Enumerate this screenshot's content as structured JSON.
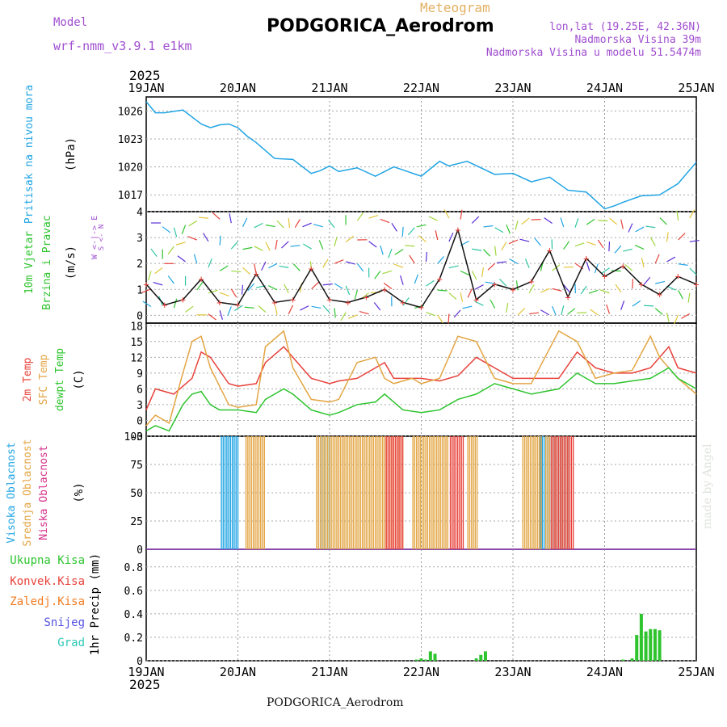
{
  "header": {
    "title": "PODGORICA_Aerodrom",
    "subtitle": "Meteogram",
    "model_label": "Model",
    "model_value": "wrf-nmm_v3.9.1  e1km",
    "coords": "lon,lat (19.25E, 42.36N)",
    "elevation": "Nadmorska Visina 39m",
    "model_elevation": "Nadmorska Visina u modelu 51.5474m",
    "year_top": "2025",
    "year_bottom": "2025",
    "footer": "PODGORICA_Aerodrom",
    "watermark": "made by Angel"
  },
  "chart_data": [
    {
      "type": "line",
      "ylabel": "Pritisak na nivou mora",
      "unit": "(hPa)",
      "x_labels": [
        "19JAN",
        "20JAN",
        "21JAN",
        "22JAN",
        "23JAN",
        "24JAN",
        "25JAN"
      ],
      "yticks": [
        1017,
        1020,
        1023,
        1026
      ],
      "ylim": [
        1015.2,
        1027.5
      ],
      "color": "#1fa4e4",
      "series": [
        {
          "x": [
            0,
            0.1,
            0.2,
            0.4,
            0.6,
            0.7,
            0.8,
            0.9,
            1.0,
            1.1,
            1.2,
            1.4,
            1.6,
            1.8,
            1.9,
            2.0,
            2.1,
            2.3,
            2.5,
            2.7,
            3.0,
            3.2,
            3.3,
            3.5,
            3.8,
            4.0,
            4.2,
            4.4,
            4.6,
            4.8,
            5.0,
            5.1,
            5.2,
            5.4,
            5.6,
            5.8,
            6.0
          ],
          "values": [
            1027.0,
            1025.8,
            1025.8,
            1026.1,
            1024.6,
            1024.2,
            1024.5,
            1024.6,
            1024.2,
            1023.3,
            1022.6,
            1020.9,
            1020.8,
            1019.3,
            1019.6,
            1020.1,
            1019.5,
            1019.9,
            1019.0,
            1020.0,
            1019.0,
            1020.6,
            1020.1,
            1020.6,
            1019.2,
            1019.3,
            1018.4,
            1018.9,
            1017.5,
            1017.3,
            1015.5,
            1015.8,
            1016.2,
            1016.9,
            1017.0,
            1018.2,
            1020.5
          ]
        }
      ]
    },
    {
      "type": "line",
      "ylabel": "10m Vjetar Brzina i Pravac",
      "unit": "(m/s)",
      "compass": "W <-|-> E",
      "compass_ns": "S <- N",
      "yticks": [
        0,
        1,
        2,
        3,
        4
      ],
      "ylim": [
        -0.3,
        4
      ],
      "series": [
        {
          "name": "speed",
          "x": [
            0,
            0.2,
            0.4,
            0.6,
            0.8,
            1.0,
            1.2,
            1.4,
            1.6,
            1.8,
            2.0,
            2.2,
            2.4,
            2.6,
            2.8,
            3.0,
            3.2,
            3.4,
            3.6,
            3.8,
            4.0,
            4.2,
            4.4,
            4.6,
            4.8,
            5.0,
            5.2,
            5.4,
            5.6,
            5.8,
            6.0
          ],
          "values": [
            1.2,
            0.4,
            0.6,
            1.4,
            0.5,
            0.4,
            1.6,
            0.5,
            0.6,
            1.8,
            0.6,
            0.5,
            0.7,
            1.0,
            0.5,
            0.3,
            1.4,
            3.3,
            0.6,
            1.2,
            1.0,
            1.3,
            2.5,
            0.7,
            2.2,
            1.5,
            1.9,
            1.2,
            0.8,
            1.5,
            1.2
          ]
        }
      ]
    },
    {
      "type": "line",
      "ylabel": "2m Temp",
      "unit": "(C)",
      "legend": [
        "2m Temp",
        "SFC Temp",
        "dewpt Temp"
      ],
      "yticks": [
        -3,
        0,
        3,
        6,
        9,
        12,
        15,
        18
      ],
      "ylim": [
        -3,
        18.5
      ],
      "series": [
        {
          "name": "2m Temp",
          "color": "#e8413a",
          "x": [
            0,
            0.1,
            0.3,
            0.5,
            0.6,
            0.7,
            0.9,
            1.0,
            1.2,
            1.3,
            1.5,
            1.6,
            1.8,
            2.0,
            2.1,
            2.3,
            2.5,
            2.6,
            2.7,
            2.9,
            3.0,
            3.2,
            3.4,
            3.6,
            3.8,
            4.0,
            4.2,
            4.5,
            4.7,
            4.9,
            5.1,
            5.3,
            5.5,
            5.7,
            5.8,
            6.0
          ],
          "values": [
            2,
            6,
            5,
            8,
            13,
            12,
            7,
            6.5,
            7,
            11,
            14,
            12,
            8,
            7,
            7.5,
            8,
            10,
            11,
            8,
            8,
            8,
            7.5,
            8.5,
            12,
            10,
            8,
            8,
            8,
            13,
            10,
            9,
            9,
            10,
            14,
            10,
            9
          ]
        },
        {
          "name": "SFC Temp",
          "color": "#e3a543",
          "x": [
            0,
            0.1,
            0.25,
            0.4,
            0.5,
            0.6,
            0.7,
            0.9,
            1.0,
            1.2,
            1.3,
            1.5,
            1.6,
            1.8,
            2.0,
            2.1,
            2.3,
            2.5,
            2.6,
            2.7,
            2.9,
            3.0,
            3.2,
            3.4,
            3.6,
            3.8,
            4.0,
            4.2,
            4.5,
            4.7,
            4.9,
            5.1,
            5.3,
            5.5,
            5.6,
            5.8,
            6.0
          ],
          "values": [
            -1,
            1,
            -0.5,
            9,
            15,
            16,
            10,
            3,
            2.5,
            3,
            14,
            17,
            10,
            4,
            3.5,
            4,
            11,
            12,
            8,
            7,
            8,
            7,
            8,
            16,
            15,
            8,
            7,
            7,
            17,
            15,
            8,
            9,
            9.5,
            16,
            12,
            8,
            5
          ]
        },
        {
          "name": "dewpt Temp",
          "color": "#2ec42e",
          "x": [
            0,
            0.1,
            0.25,
            0.4,
            0.5,
            0.6,
            0.7,
            0.8,
            1.0,
            1.2,
            1.3,
            1.5,
            1.6,
            1.8,
            2.0,
            2.1,
            2.3,
            2.5,
            2.6,
            2.8,
            3.0,
            3.2,
            3.4,
            3.6,
            3.8,
            4.0,
            4.2,
            4.5,
            4.7,
            4.9,
            5.1,
            5.3,
            5.5,
            5.7,
            5.8,
            6.0
          ],
          "values": [
            -2,
            -1,
            -2,
            3,
            5,
            5.5,
            3,
            2,
            2,
            1.5,
            4,
            6,
            5,
            2,
            1,
            1.5,
            3,
            3.5,
            5,
            2,
            1.5,
            2,
            4,
            5,
            7,
            6,
            5,
            6,
            9,
            7,
            7,
            7.5,
            8,
            10,
            8,
            6
          ]
        }
      ]
    },
    {
      "type": "bar",
      "ylabel": "Oblacnost",
      "unit": "(%)",
      "legend": [
        "Visoka Oblacnost",
        "Srednja Oblacnost",
        "Niska Oblacnost"
      ],
      "yticks": [
        0,
        25,
        50,
        75,
        100
      ],
      "ylim": [
        0,
        100
      ],
      "series": [
        {
          "name": "Visoka Oblacnost",
          "color": "#1fa4e4",
          "ranges": [
            [
              0.82,
              1.0
            ],
            [
              1.9,
              2.0
            ],
            [
              4.3,
              4.6
            ]
          ]
        },
        {
          "name": "Srednja Oblacnost",
          "color": "#e3a543",
          "ranges": [
            [
              1.08,
              1.3
            ],
            [
              1.85,
              2.8
            ],
            [
              2.9,
              3.3
            ],
            [
              3.5,
              3.6
            ],
            [
              4.1,
              4.3
            ],
            [
              4.35,
              4.6
            ]
          ]
        },
        {
          "name": "Niska Oblacnost",
          "color": "#e8413a",
          "ranges": [
            [
              2.6,
              2.8
            ],
            [
              3.3,
              3.45
            ],
            [
              4.4,
              4.65
            ]
          ]
        }
      ]
    },
    {
      "type": "bar",
      "ylabel": "1hr Precip (mm)",
      "legend": [
        "Ukupna Kisa",
        "Konvek.Kisa",
        "Zaledj.Kisa",
        "Snijeg",
        "Grad"
      ],
      "legend_colors": [
        "#2ec42e",
        "#e8413a",
        "#f07c22",
        "#5451e0",
        "#2fc8b8"
      ],
      "yticks": [
        0,
        0.2,
        0.4,
        0.6,
        0.8
      ],
      "ylim": [
        0,
        0.95
      ],
      "series": [
        {
          "name": "Ukupna Kisa",
          "x": [
            2.95,
            3.0,
            3.05,
            3.1,
            3.15,
            3.6,
            3.65,
            3.7,
            5.2,
            5.3,
            5.35,
            5.4,
            5.45,
            5.5,
            5.55,
            5.6
          ],
          "values": [
            0.01,
            0.02,
            0.01,
            0.08,
            0.06,
            0.02,
            0.05,
            0.08,
            0.01,
            0.02,
            0.22,
            0.4,
            0.25,
            0.27,
            0.27,
            0.26
          ]
        }
      ]
    }
  ]
}
